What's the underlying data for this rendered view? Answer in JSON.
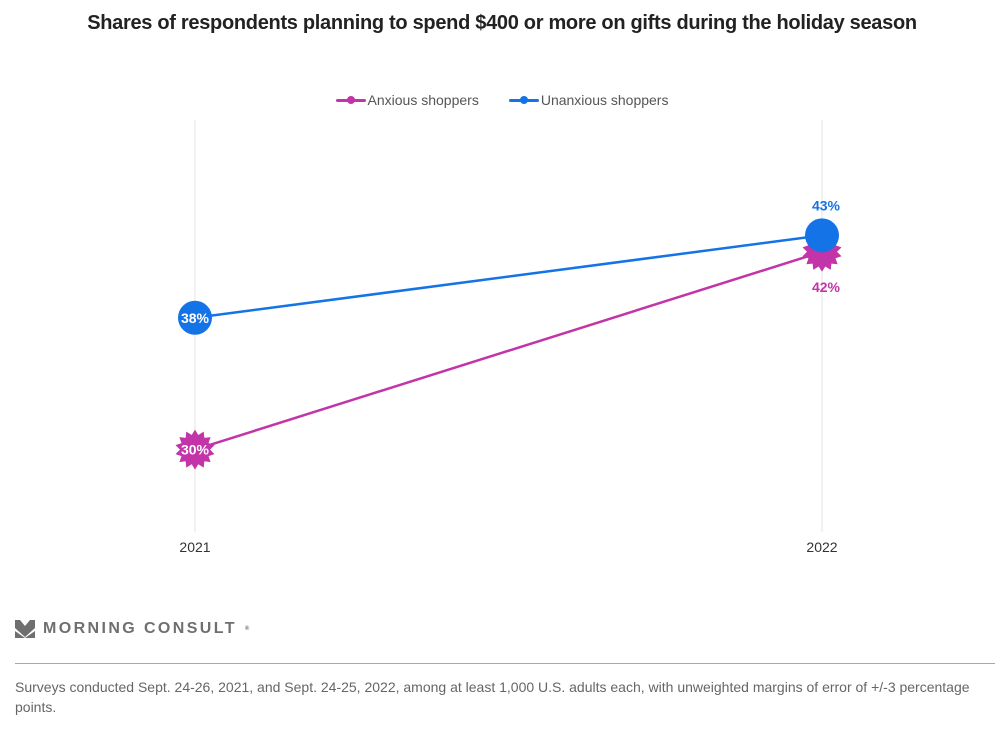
{
  "title": "Shares of respondents planning to spend $400 or more on gifts during the holiday season",
  "legend": [
    {
      "label": "Anxious shoppers",
      "color": "#c234a8",
      "marker": "starburst"
    },
    {
      "label": "Unanxious shoppers",
      "color": "#1473e6",
      "marker": "circle"
    }
  ],
  "chart_data": {
    "type": "line",
    "title": "Shares of respondents planning to spend $400 or more on gifts during the holiday season",
    "xlabel": "",
    "ylabel": "",
    "x": [
      "2021",
      "2022"
    ],
    "ylim": [
      25,
      50
    ],
    "grid": "vertical",
    "legend_position": "top-center",
    "series": [
      {
        "name": "Anxious shoppers",
        "color": "#c234a8",
        "values": [
          30,
          42
        ],
        "labels": [
          "30%",
          "42%"
        ]
      },
      {
        "name": "Unanxious shoppers",
        "color": "#1473e6",
        "values": [
          38,
          43
        ],
        "labels": [
          "38%",
          "43%"
        ]
      }
    ]
  },
  "brand": {
    "name": "MORNING CONSULT",
    "mark": "®",
    "icon": "morning-consult-logo-icon"
  },
  "note": "Surveys conducted Sept. 24-26, 2021, and Sept. 24-25, 2022, among at least 1,000 U.S. adults each, with unweighted margins of error of +/-3 percentage points."
}
